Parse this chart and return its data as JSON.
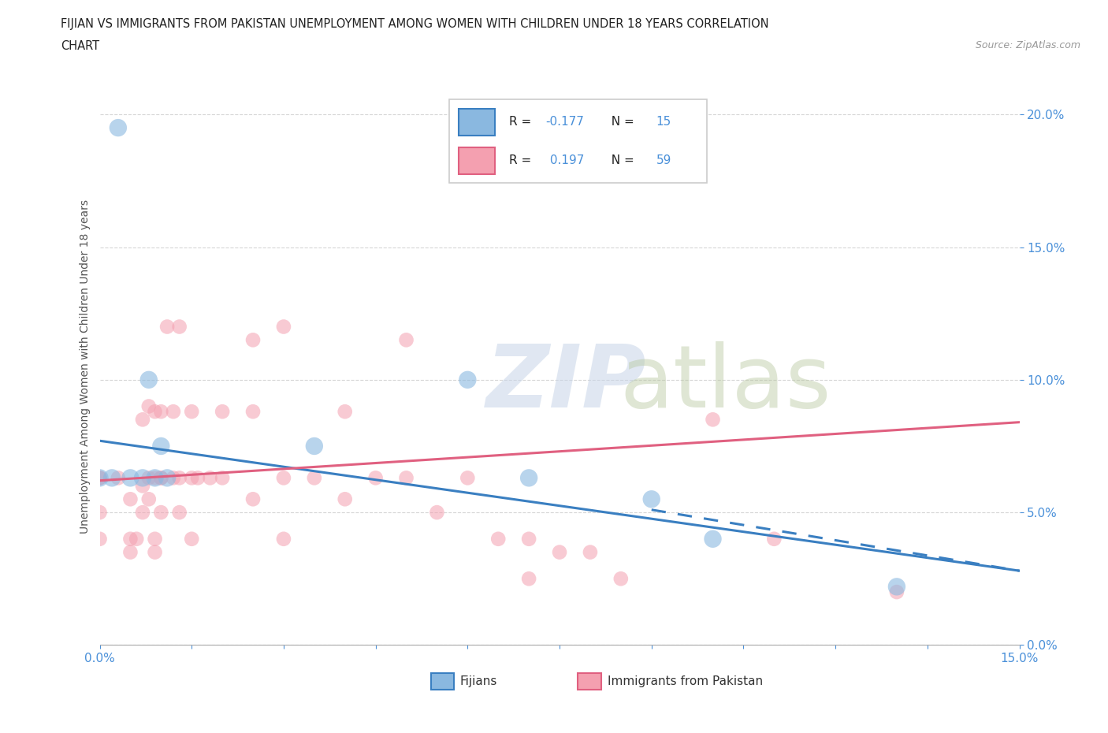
{
  "title_line1": "FIJIAN VS IMMIGRANTS FROM PAKISTAN UNEMPLOYMENT AMONG WOMEN WITH CHILDREN UNDER 18 YEARS CORRELATION",
  "title_line2": "CHART",
  "source_text": "Source: ZipAtlas.com",
  "ylabel": "Unemployment Among Women with Children Under 18 years",
  "xlabel_fijians": "Fijians",
  "xlabel_pakistan": "Immigrants from Pakistan",
  "xmin": 0.0,
  "xmax": 0.15,
  "ymin": 0.0,
  "ymax": 0.21,
  "fijian_color": "#8ab8e0",
  "pakistan_color": "#f4a0b0",
  "fijian_line_color": "#3a7fc1",
  "pakistan_line_color": "#e06080",
  "fijian_R": -0.177,
  "fijian_N": 15,
  "pakistan_R": 0.197,
  "pakistan_N": 59,
  "fijian_line_start_y": 0.077,
  "fijian_line_end_y": 0.028,
  "pakistan_line_start_y": 0.062,
  "pakistan_line_end_y": 0.084,
  "fijian_points": [
    [
      0.0,
      0.063
    ],
    [
      0.002,
      0.063
    ],
    [
      0.003,
      0.195
    ],
    [
      0.005,
      0.063
    ],
    [
      0.007,
      0.063
    ],
    [
      0.008,
      0.1
    ],
    [
      0.009,
      0.063
    ],
    [
      0.01,
      0.075
    ],
    [
      0.011,
      0.063
    ],
    [
      0.035,
      0.075
    ],
    [
      0.06,
      0.1
    ],
    [
      0.07,
      0.063
    ],
    [
      0.09,
      0.055
    ],
    [
      0.1,
      0.04
    ],
    [
      0.13,
      0.022
    ]
  ],
  "pakistan_points": [
    [
      0.0,
      0.063
    ],
    [
      0.0,
      0.063
    ],
    [
      0.0,
      0.05
    ],
    [
      0.0,
      0.04
    ],
    [
      0.003,
      0.063
    ],
    [
      0.005,
      0.055
    ],
    [
      0.005,
      0.04
    ],
    [
      0.005,
      0.035
    ],
    [
      0.006,
      0.04
    ],
    [
      0.007,
      0.085
    ],
    [
      0.007,
      0.06
    ],
    [
      0.007,
      0.05
    ],
    [
      0.008,
      0.09
    ],
    [
      0.008,
      0.063
    ],
    [
      0.008,
      0.055
    ],
    [
      0.009,
      0.088
    ],
    [
      0.009,
      0.063
    ],
    [
      0.009,
      0.04
    ],
    [
      0.009,
      0.035
    ],
    [
      0.01,
      0.088
    ],
    [
      0.01,
      0.063
    ],
    [
      0.01,
      0.063
    ],
    [
      0.01,
      0.05
    ],
    [
      0.011,
      0.12
    ],
    [
      0.012,
      0.088
    ],
    [
      0.012,
      0.063
    ],
    [
      0.013,
      0.12
    ],
    [
      0.013,
      0.063
    ],
    [
      0.013,
      0.05
    ],
    [
      0.015,
      0.088
    ],
    [
      0.015,
      0.063
    ],
    [
      0.015,
      0.04
    ],
    [
      0.016,
      0.063
    ],
    [
      0.018,
      0.063
    ],
    [
      0.02,
      0.088
    ],
    [
      0.02,
      0.063
    ],
    [
      0.025,
      0.115
    ],
    [
      0.025,
      0.088
    ],
    [
      0.025,
      0.055
    ],
    [
      0.03,
      0.12
    ],
    [
      0.03,
      0.063
    ],
    [
      0.03,
      0.04
    ],
    [
      0.035,
      0.063
    ],
    [
      0.04,
      0.088
    ],
    [
      0.04,
      0.055
    ],
    [
      0.045,
      0.063
    ],
    [
      0.05,
      0.115
    ],
    [
      0.05,
      0.063
    ],
    [
      0.055,
      0.05
    ],
    [
      0.06,
      0.063
    ],
    [
      0.065,
      0.04
    ],
    [
      0.07,
      0.04
    ],
    [
      0.07,
      0.025
    ],
    [
      0.075,
      0.035
    ],
    [
      0.08,
      0.035
    ],
    [
      0.085,
      0.025
    ],
    [
      0.1,
      0.085
    ],
    [
      0.11,
      0.04
    ],
    [
      0.13,
      0.02
    ]
  ]
}
